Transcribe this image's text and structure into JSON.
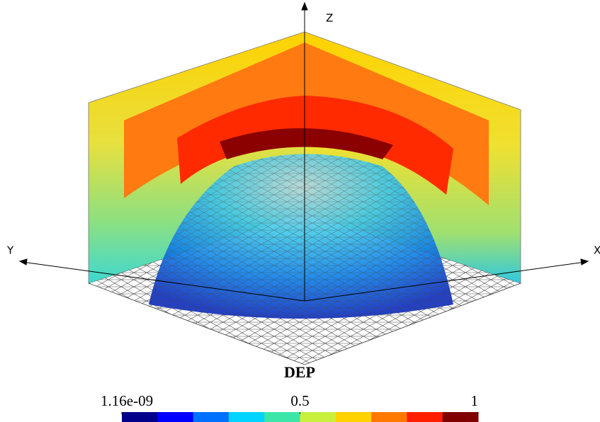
{
  "axes": {
    "x": "X",
    "y": "Y",
    "z": "Z"
  },
  "title": "DEP",
  "colorbar": {
    "range": [
      1.16e-09,
      1
    ],
    "ticks": [
      {
        "value": 1.16e-09,
        "label": "1.16e-09"
      },
      0.5,
      1
    ],
    "colors": [
      "#00008b",
      "#0000ff",
      "#0070ff",
      "#00d4ff",
      "#3ce6a8",
      "#c8f03c",
      "#ffd200",
      "#ff7800",
      "#ff1e00",
      "#800000"
    ]
  }
}
